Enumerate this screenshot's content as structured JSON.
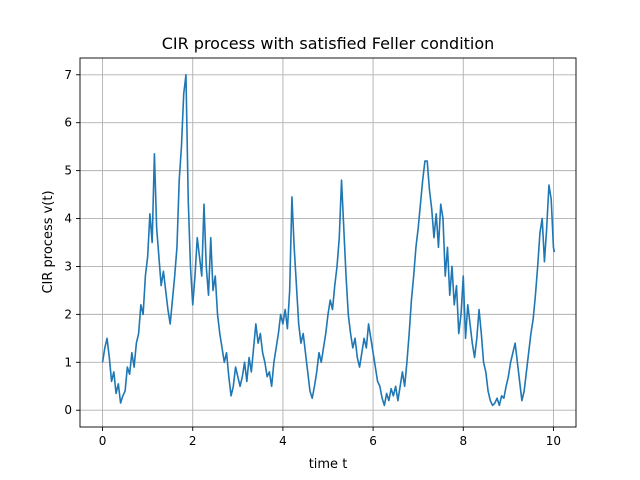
{
  "chart_data": {
    "type": "line",
    "title": "CIR process with satisfied Feller condition",
    "xlabel": "time t",
    "ylabel": "CIR process v(t)",
    "xlim": [
      -0.5,
      10.5
    ],
    "ylim": [
      -0.35,
      7.35
    ],
    "xticks": [
      0,
      2,
      4,
      6,
      8,
      10
    ],
    "yticks": [
      0,
      1,
      2,
      3,
      4,
      5,
      6,
      7
    ],
    "grid": true,
    "series": [
      {
        "color": "#1f77b4",
        "points": [
          [
            0.0,
            1.0
          ],
          [
            0.05,
            1.3
          ],
          [
            0.1,
            1.5
          ],
          [
            0.15,
            1.1
          ],
          [
            0.2,
            0.6
          ],
          [
            0.25,
            0.8
          ],
          [
            0.3,
            0.35
          ],
          [
            0.35,
            0.55
          ],
          [
            0.4,
            0.15
          ],
          [
            0.45,
            0.3
          ],
          [
            0.5,
            0.4
          ],
          [
            0.55,
            0.9
          ],
          [
            0.6,
            0.75
          ],
          [
            0.65,
            1.2
          ],
          [
            0.7,
            0.9
          ],
          [
            0.75,
            1.4
          ],
          [
            0.8,
            1.6
          ],
          [
            0.85,
            2.2
          ],
          [
            0.9,
            2.0
          ],
          [
            0.95,
            2.8
          ],
          [
            1.0,
            3.2
          ],
          [
            1.05,
            4.1
          ],
          [
            1.1,
            3.5
          ],
          [
            1.15,
            5.35
          ],
          [
            1.2,
            3.8
          ],
          [
            1.25,
            3.2
          ],
          [
            1.3,
            2.6
          ],
          [
            1.35,
            2.9
          ],
          [
            1.4,
            2.5
          ],
          [
            1.45,
            2.1
          ],
          [
            1.5,
            1.8
          ],
          [
            1.55,
            2.3
          ],
          [
            1.6,
            2.8
          ],
          [
            1.65,
            3.4
          ],
          [
            1.7,
            4.8
          ],
          [
            1.75,
            5.5
          ],
          [
            1.8,
            6.6
          ],
          [
            1.85,
            7.0
          ],
          [
            1.9,
            4.4
          ],
          [
            1.95,
            3.0
          ],
          [
            2.0,
            2.2
          ],
          [
            2.05,
            2.8
          ],
          [
            2.1,
            3.6
          ],
          [
            2.15,
            3.2
          ],
          [
            2.2,
            2.8
          ],
          [
            2.25,
            4.3
          ],
          [
            2.3,
            3.0
          ],
          [
            2.35,
            2.4
          ],
          [
            2.4,
            3.6
          ],
          [
            2.45,
            2.5
          ],
          [
            2.5,
            2.8
          ],
          [
            2.55,
            2.0
          ],
          [
            2.6,
            1.6
          ],
          [
            2.65,
            1.3
          ],
          [
            2.7,
            1.0
          ],
          [
            2.75,
            1.2
          ],
          [
            2.8,
            0.7
          ],
          [
            2.85,
            0.3
          ],
          [
            2.9,
            0.5
          ],
          [
            2.95,
            0.9
          ],
          [
            3.0,
            0.7
          ],
          [
            3.05,
            0.5
          ],
          [
            3.1,
            0.7
          ],
          [
            3.15,
            1.0
          ],
          [
            3.2,
            0.6
          ],
          [
            3.25,
            1.1
          ],
          [
            3.3,
            0.8
          ],
          [
            3.35,
            1.3
          ],
          [
            3.4,
            1.8
          ],
          [
            3.45,
            1.4
          ],
          [
            3.5,
            1.6
          ],
          [
            3.55,
            1.2
          ],
          [
            3.6,
            1.0
          ],
          [
            3.65,
            0.7
          ],
          [
            3.7,
            0.8
          ],
          [
            3.75,
            0.5
          ],
          [
            3.8,
            1.0
          ],
          [
            3.85,
            1.3
          ],
          [
            3.9,
            1.6
          ],
          [
            3.95,
            2.0
          ],
          [
            4.0,
            1.8
          ],
          [
            4.05,
            2.1
          ],
          [
            4.1,
            1.7
          ],
          [
            4.15,
            2.5
          ],
          [
            4.2,
            4.45
          ],
          [
            4.25,
            3.4
          ],
          [
            4.3,
            2.6
          ],
          [
            4.35,
            1.8
          ],
          [
            4.4,
            1.4
          ],
          [
            4.45,
            1.6
          ],
          [
            4.5,
            1.2
          ],
          [
            4.55,
            0.8
          ],
          [
            4.6,
            0.4
          ],
          [
            4.65,
            0.25
          ],
          [
            4.7,
            0.5
          ],
          [
            4.75,
            0.8
          ],
          [
            4.8,
            1.2
          ],
          [
            4.85,
            1.0
          ],
          [
            4.9,
            1.3
          ],
          [
            4.95,
            1.6
          ],
          [
            5.0,
            2.0
          ],
          [
            5.05,
            2.3
          ],
          [
            5.1,
            2.1
          ],
          [
            5.15,
            2.6
          ],
          [
            5.2,
            3.0
          ],
          [
            5.25,
            3.6
          ],
          [
            5.3,
            4.8
          ],
          [
            5.35,
            3.8
          ],
          [
            5.4,
            2.8
          ],
          [
            5.45,
            2.0
          ],
          [
            5.5,
            1.6
          ],
          [
            5.55,
            1.3
          ],
          [
            5.6,
            1.5
          ],
          [
            5.65,
            1.1
          ],
          [
            5.7,
            0.9
          ],
          [
            5.75,
            1.2
          ],
          [
            5.8,
            1.5
          ],
          [
            5.85,
            1.3
          ],
          [
            5.9,
            1.8
          ],
          [
            5.95,
            1.5
          ],
          [
            6.0,
            1.2
          ],
          [
            6.05,
            0.9
          ],
          [
            6.1,
            0.6
          ],
          [
            6.15,
            0.5
          ],
          [
            6.2,
            0.25
          ],
          [
            6.25,
            0.1
          ],
          [
            6.3,
            0.35
          ],
          [
            6.35,
            0.2
          ],
          [
            6.4,
            0.45
          ],
          [
            6.45,
            0.3
          ],
          [
            6.5,
            0.5
          ],
          [
            6.55,
            0.2
          ],
          [
            6.6,
            0.5
          ],
          [
            6.65,
            0.8
          ],
          [
            6.7,
            0.5
          ],
          [
            6.75,
            1.0
          ],
          [
            6.8,
            1.6
          ],
          [
            6.85,
            2.3
          ],
          [
            6.9,
            2.8
          ],
          [
            6.95,
            3.4
          ],
          [
            7.0,
            3.8
          ],
          [
            7.05,
            4.3
          ],
          [
            7.1,
            4.8
          ],
          [
            7.15,
            5.2
          ],
          [
            7.2,
            5.2
          ],
          [
            7.25,
            4.6
          ],
          [
            7.3,
            4.2
          ],
          [
            7.35,
            3.6
          ],
          [
            7.4,
            4.1
          ],
          [
            7.45,
            3.4
          ],
          [
            7.5,
            4.3
          ],
          [
            7.55,
            4.0
          ],
          [
            7.6,
            2.8
          ],
          [
            7.65,
            3.4
          ],
          [
            7.7,
            2.4
          ],
          [
            7.75,
            3.0
          ],
          [
            7.8,
            2.2
          ],
          [
            7.85,
            2.6
          ],
          [
            7.9,
            1.6
          ],
          [
            7.95,
            2.0
          ],
          [
            8.0,
            2.8
          ],
          [
            8.05,
            1.5
          ],
          [
            8.1,
            2.2
          ],
          [
            8.15,
            1.8
          ],
          [
            8.2,
            1.4
          ],
          [
            8.25,
            1.1
          ],
          [
            8.3,
            1.5
          ],
          [
            8.35,
            2.1
          ],
          [
            8.4,
            1.6
          ],
          [
            8.45,
            1.0
          ],
          [
            8.5,
            0.8
          ],
          [
            8.55,
            0.4
          ],
          [
            8.6,
            0.2
          ],
          [
            8.65,
            0.1
          ],
          [
            8.7,
            0.15
          ],
          [
            8.75,
            0.25
          ],
          [
            8.8,
            0.1
          ],
          [
            8.85,
            0.3
          ],
          [
            8.9,
            0.25
          ],
          [
            8.95,
            0.5
          ],
          [
            9.0,
            0.7
          ],
          [
            9.05,
            1.0
          ],
          [
            9.1,
            1.2
          ],
          [
            9.15,
            1.4
          ],
          [
            9.2,
            1.0
          ],
          [
            9.25,
            0.6
          ],
          [
            9.3,
            0.2
          ],
          [
            9.35,
            0.4
          ],
          [
            9.4,
            0.8
          ],
          [
            9.45,
            1.2
          ],
          [
            9.5,
            1.6
          ],
          [
            9.55,
            1.9
          ],
          [
            9.6,
            2.4
          ],
          [
            9.65,
            3.0
          ],
          [
            9.7,
            3.7
          ],
          [
            9.75,
            4.0
          ],
          [
            9.8,
            3.1
          ],
          [
            9.85,
            3.8
          ],
          [
            9.9,
            4.7
          ],
          [
            9.95,
            4.4
          ],
          [
            10.0,
            3.4
          ],
          [
            10.02,
            3.3
          ]
        ]
      }
    ]
  }
}
